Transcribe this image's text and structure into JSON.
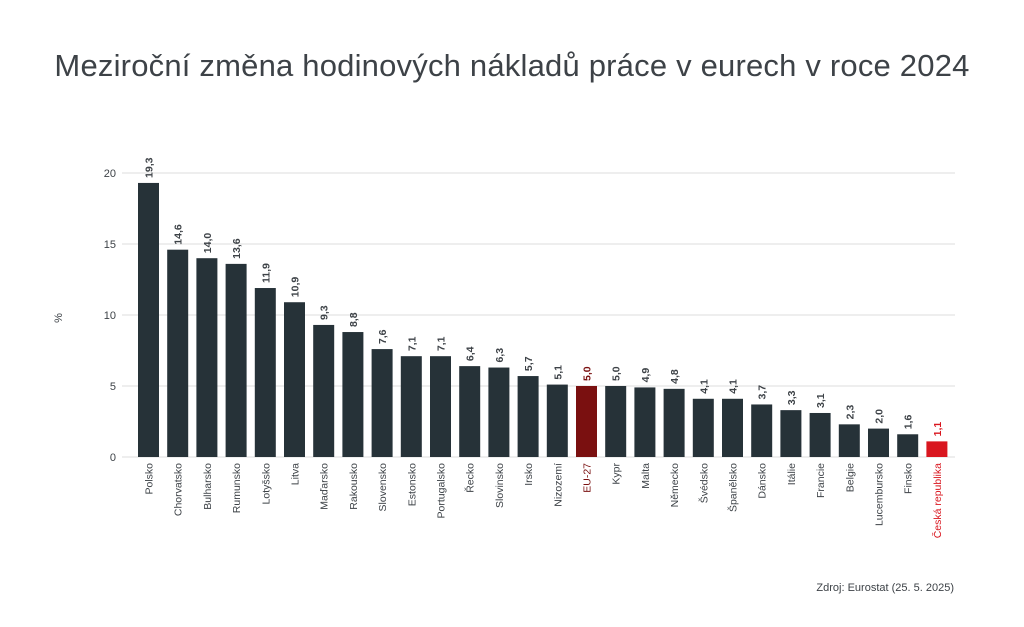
{
  "chart_data": {
    "type": "bar",
    "title": "Meziroční změna hodinových nákladů práce v eurech v roce 2024",
    "ylabel": "%",
    "xlabel": "",
    "ylim": [
      0,
      20
    ],
    "yticks": [
      0,
      5,
      10,
      15,
      20
    ],
    "grid": true,
    "categories": [
      "Polsko",
      "Chorvatsko",
      "Bulharsko",
      "Rumunsko",
      "Lotyšsko",
      "Litva",
      "Maďarsko",
      "Rakousko",
      "Slovensko",
      "Estonsko",
      "Portugalsko",
      "Řecko",
      "Slovinsko",
      "Irsko",
      "Nizozemí",
      "EU-27",
      "Kypr",
      "Malta",
      "Německo",
      "Švédsko",
      "Španělsko",
      "Dánsko",
      "Itálie",
      "Francie",
      "Belgie",
      "Lucembursko",
      "Finsko",
      "Česká republika"
    ],
    "values": [
      19.3,
      14.6,
      14.0,
      13.6,
      11.9,
      10.9,
      9.3,
      8.8,
      7.6,
      7.1,
      7.1,
      6.4,
      6.3,
      5.7,
      5.1,
      5.0,
      5.0,
      4.9,
      4.8,
      4.1,
      4.1,
      3.7,
      3.3,
      3.1,
      2.3,
      2.0,
      1.6,
      1.1
    ],
    "value_labels": [
      "19,3",
      "14,6",
      "14,0",
      "13,6",
      "11,9",
      "10,9",
      "9,3",
      "8,8",
      "7,6",
      "7,1",
      "7,1",
      "6,4",
      "6,3",
      "5,7",
      "5,1",
      "5,0",
      "5,0",
      "4,9",
      "4,8",
      "4,1",
      "4,1",
      "3,7",
      "3,3",
      "3,1",
      "2,3",
      "2,0",
      "1,6",
      "1,1"
    ],
    "highlight": {
      "EU-27": "dark-red",
      "Česká republika": "red"
    },
    "colors": {
      "bar": "#263238",
      "eu": "#7a1010",
      "cz": "#d9161f",
      "grid": "#dcdcdc",
      "text": "#3d4247"
    }
  },
  "source": "Zdroj: Eurostat (25. 5. 2025)"
}
